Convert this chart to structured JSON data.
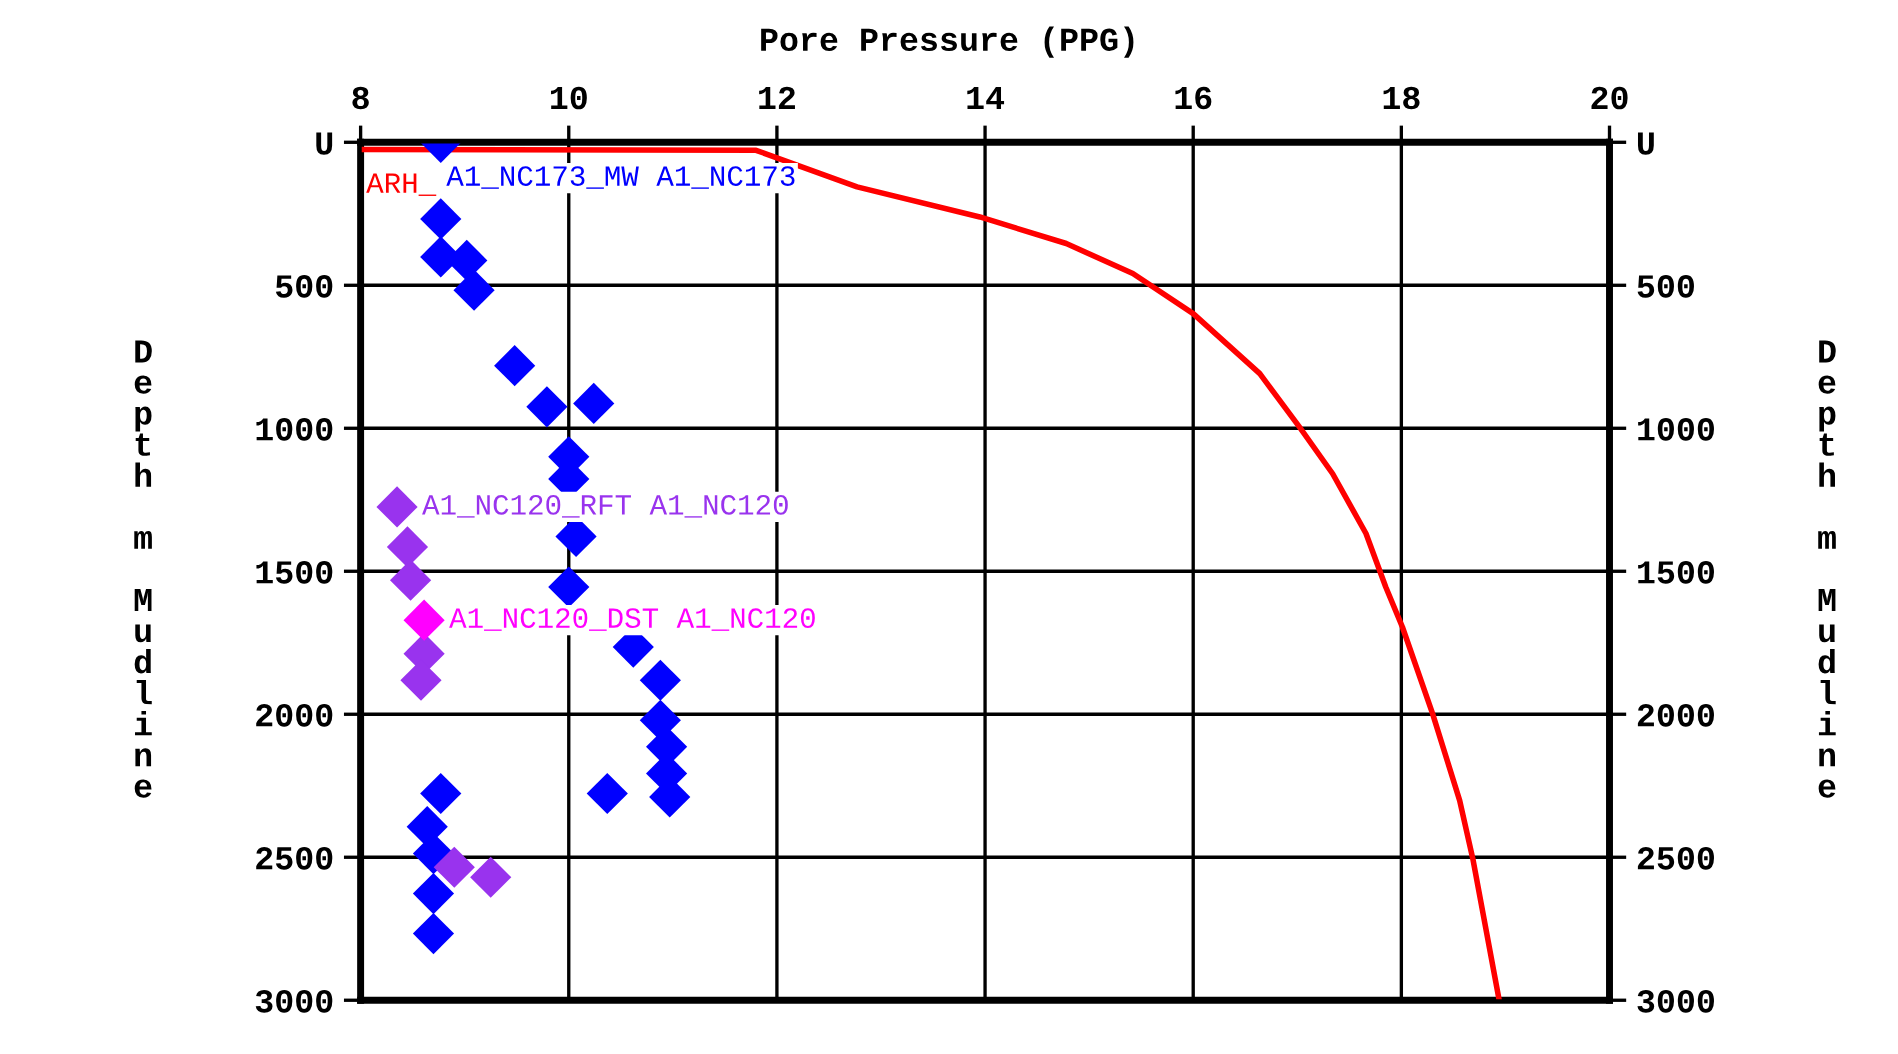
{
  "chart_data": {
    "type": "scatter",
    "title": "Pore Pressure (PPG)",
    "ylabel": "Depth m Mudline",
    "y2label": "Depth m Mudline",
    "xlim": [
      8,
      20
    ],
    "xticks": [
      8,
      10,
      12,
      14,
      16,
      18,
      20
    ],
    "ylim": [
      3000,
      0
    ],
    "yticks": [
      {
        "value": 0,
        "label": "U"
      },
      500,
      1000,
      1500,
      2000,
      2500,
      3000
    ],
    "y2lim": [
      3000,
      0
    ],
    "y2ticks": [
      {
        "value": 0,
        "label": "U"
      },
      500,
      1000,
      1500,
      2000,
      2500,
      3000
    ],
    "grid": true,
    "series": [
      {
        "name": "ARH_",
        "type": "line",
        "color": "#ff0000",
        "marker": "none",
        "x": [
          8.0,
          11.8,
          12.77,
          13.95,
          14.78,
          15.42,
          16.0,
          16.64,
          17.02,
          17.34,
          17.66,
          17.85,
          18.01,
          18.3,
          18.56,
          18.69,
          18.94
        ],
        "values": [
          25,
          28,
          156,
          261,
          354,
          459,
          599,
          809,
          995,
          1159,
          1368,
          1555,
          1695,
          1998,
          2301,
          2511,
          3000
        ]
      },
      {
        "name": "A1_NC173_MW A1_NC173",
        "color": "#0000ff",
        "marker": "diamond",
        "x": [
          8.77,
          8.77,
          8.77,
          9.02,
          9.09,
          9.48,
          9.79,
          10.24,
          10.0,
          10.0,
          10.07,
          10.0,
          10.62,
          10.88,
          10.88,
          10.94,
          10.94,
          10.97,
          10.37,
          8.77,
          8.64,
          8.7,
          8.7,
          8.7
        ],
        "values": [
          0,
          268,
          401,
          413,
          517,
          781,
          925,
          913,
          1100,
          1177,
          1378,
          1555,
          1765,
          1881,
          2021,
          2114,
          2207,
          2289,
          2277,
          2277,
          2393,
          2487,
          2627,
          2767
        ]
      },
      {
        "name": "A1_NC120_RFT A1_NC120",
        "color": "#9933ee",
        "marker": "diamond",
        "x": [
          8.35,
          8.45,
          8.48,
          8.61,
          8.58,
          8.9,
          9.25
        ],
        "values": [
          1275,
          1415,
          1531,
          1788,
          1881,
          2535,
          2570
        ]
      },
      {
        "name": "A1_NC120_DST A1_NC120",
        "color": "#ff00ff",
        "marker": "diamond",
        "x": [
          8.61
        ],
        "values": [
          1671
        ]
      }
    ]
  }
}
